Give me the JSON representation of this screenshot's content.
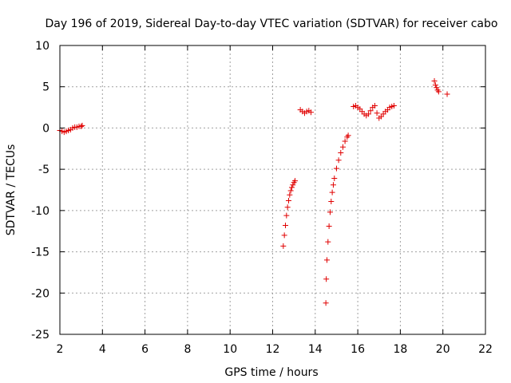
{
  "chart_data": {
    "type": "scatter",
    "title": "Day 196 of 2019, Sidereal Day-to-day VTEC variation (SDTVAR) for receiver cabo",
    "xlabel": "GPS time / hours",
    "ylabel": "SDTVAR / TECUs",
    "xlim": [
      2,
      22
    ],
    "ylim": [
      -25,
      10
    ],
    "xticks": [
      2,
      4,
      6,
      8,
      10,
      12,
      14,
      16,
      18,
      20,
      22
    ],
    "yticks": [
      -25,
      -20,
      -15,
      -10,
      -5,
      0,
      5,
      10
    ],
    "grid": true,
    "marker": "+",
    "series_color": "#e00000",
    "segments": [
      {
        "name": "arc-1",
        "x": [
          2.0,
          2.1,
          2.2,
          2.3,
          2.4,
          2.5,
          2.6,
          2.7,
          2.8,
          2.9,
          3.0,
          3.05
        ],
        "y": [
          -0.3,
          -0.4,
          -0.5,
          -0.4,
          -0.3,
          -0.2,
          0.0,
          0.1,
          0.1,
          0.2,
          0.2,
          0.3
        ]
      },
      {
        "name": "arc-2",
        "x": [
          12.5,
          12.55,
          12.6,
          12.65,
          12.7,
          12.75,
          12.8,
          12.85,
          12.9,
          12.95,
          13.0,
          13.05
        ],
        "y": [
          -14.3,
          -13.0,
          -11.8,
          -10.6,
          -9.6,
          -8.8,
          -8.1,
          -7.6,
          -7.2,
          -6.9,
          -6.6,
          -6.4
        ]
      },
      {
        "name": "arc-3",
        "x": [
          13.3,
          13.4,
          13.5,
          13.6,
          13.7,
          13.8
        ],
        "y": [
          2.2,
          2.0,
          1.8,
          2.0,
          2.1,
          1.9
        ]
      },
      {
        "name": "arc-4",
        "x": [
          14.5,
          14.52,
          14.55,
          14.6,
          14.65,
          14.7,
          14.75,
          14.8,
          14.85,
          14.9,
          15.0,
          15.1,
          15.2,
          15.3,
          15.4,
          15.5,
          15.55
        ],
        "y": [
          -21.2,
          -18.3,
          -16.0,
          -13.8,
          -11.9,
          -10.2,
          -8.9,
          -7.8,
          -6.9,
          -6.1,
          -4.9,
          -3.9,
          -3.0,
          -2.3,
          -1.6,
          -1.1,
          -0.9
        ]
      },
      {
        "name": "arc-5",
        "x": [
          15.8,
          15.9,
          16.0,
          16.1,
          16.2,
          16.3,
          16.4,
          16.5,
          16.6,
          16.7,
          16.8
        ],
        "y": [
          2.6,
          2.7,
          2.5,
          2.3,
          2.0,
          1.7,
          1.5,
          1.7,
          2.1,
          2.5,
          2.7
        ]
      },
      {
        "name": "arc-6",
        "x": [
          16.9,
          17.0,
          17.1,
          17.2,
          17.3,
          17.4,
          17.5,
          17.6,
          17.7
        ],
        "y": [
          1.8,
          1.2,
          1.4,
          1.7,
          2.0,
          2.2,
          2.5,
          2.6,
          2.7
        ]
      },
      {
        "name": "arc-7",
        "x": [
          19.6,
          19.65,
          19.7,
          19.75,
          19.8
        ],
        "y": [
          5.7,
          5.2,
          4.9,
          4.6,
          4.4
        ]
      },
      {
        "name": "arc-8",
        "x": [
          20.2
        ],
        "y": [
          4.1
        ]
      }
    ]
  }
}
